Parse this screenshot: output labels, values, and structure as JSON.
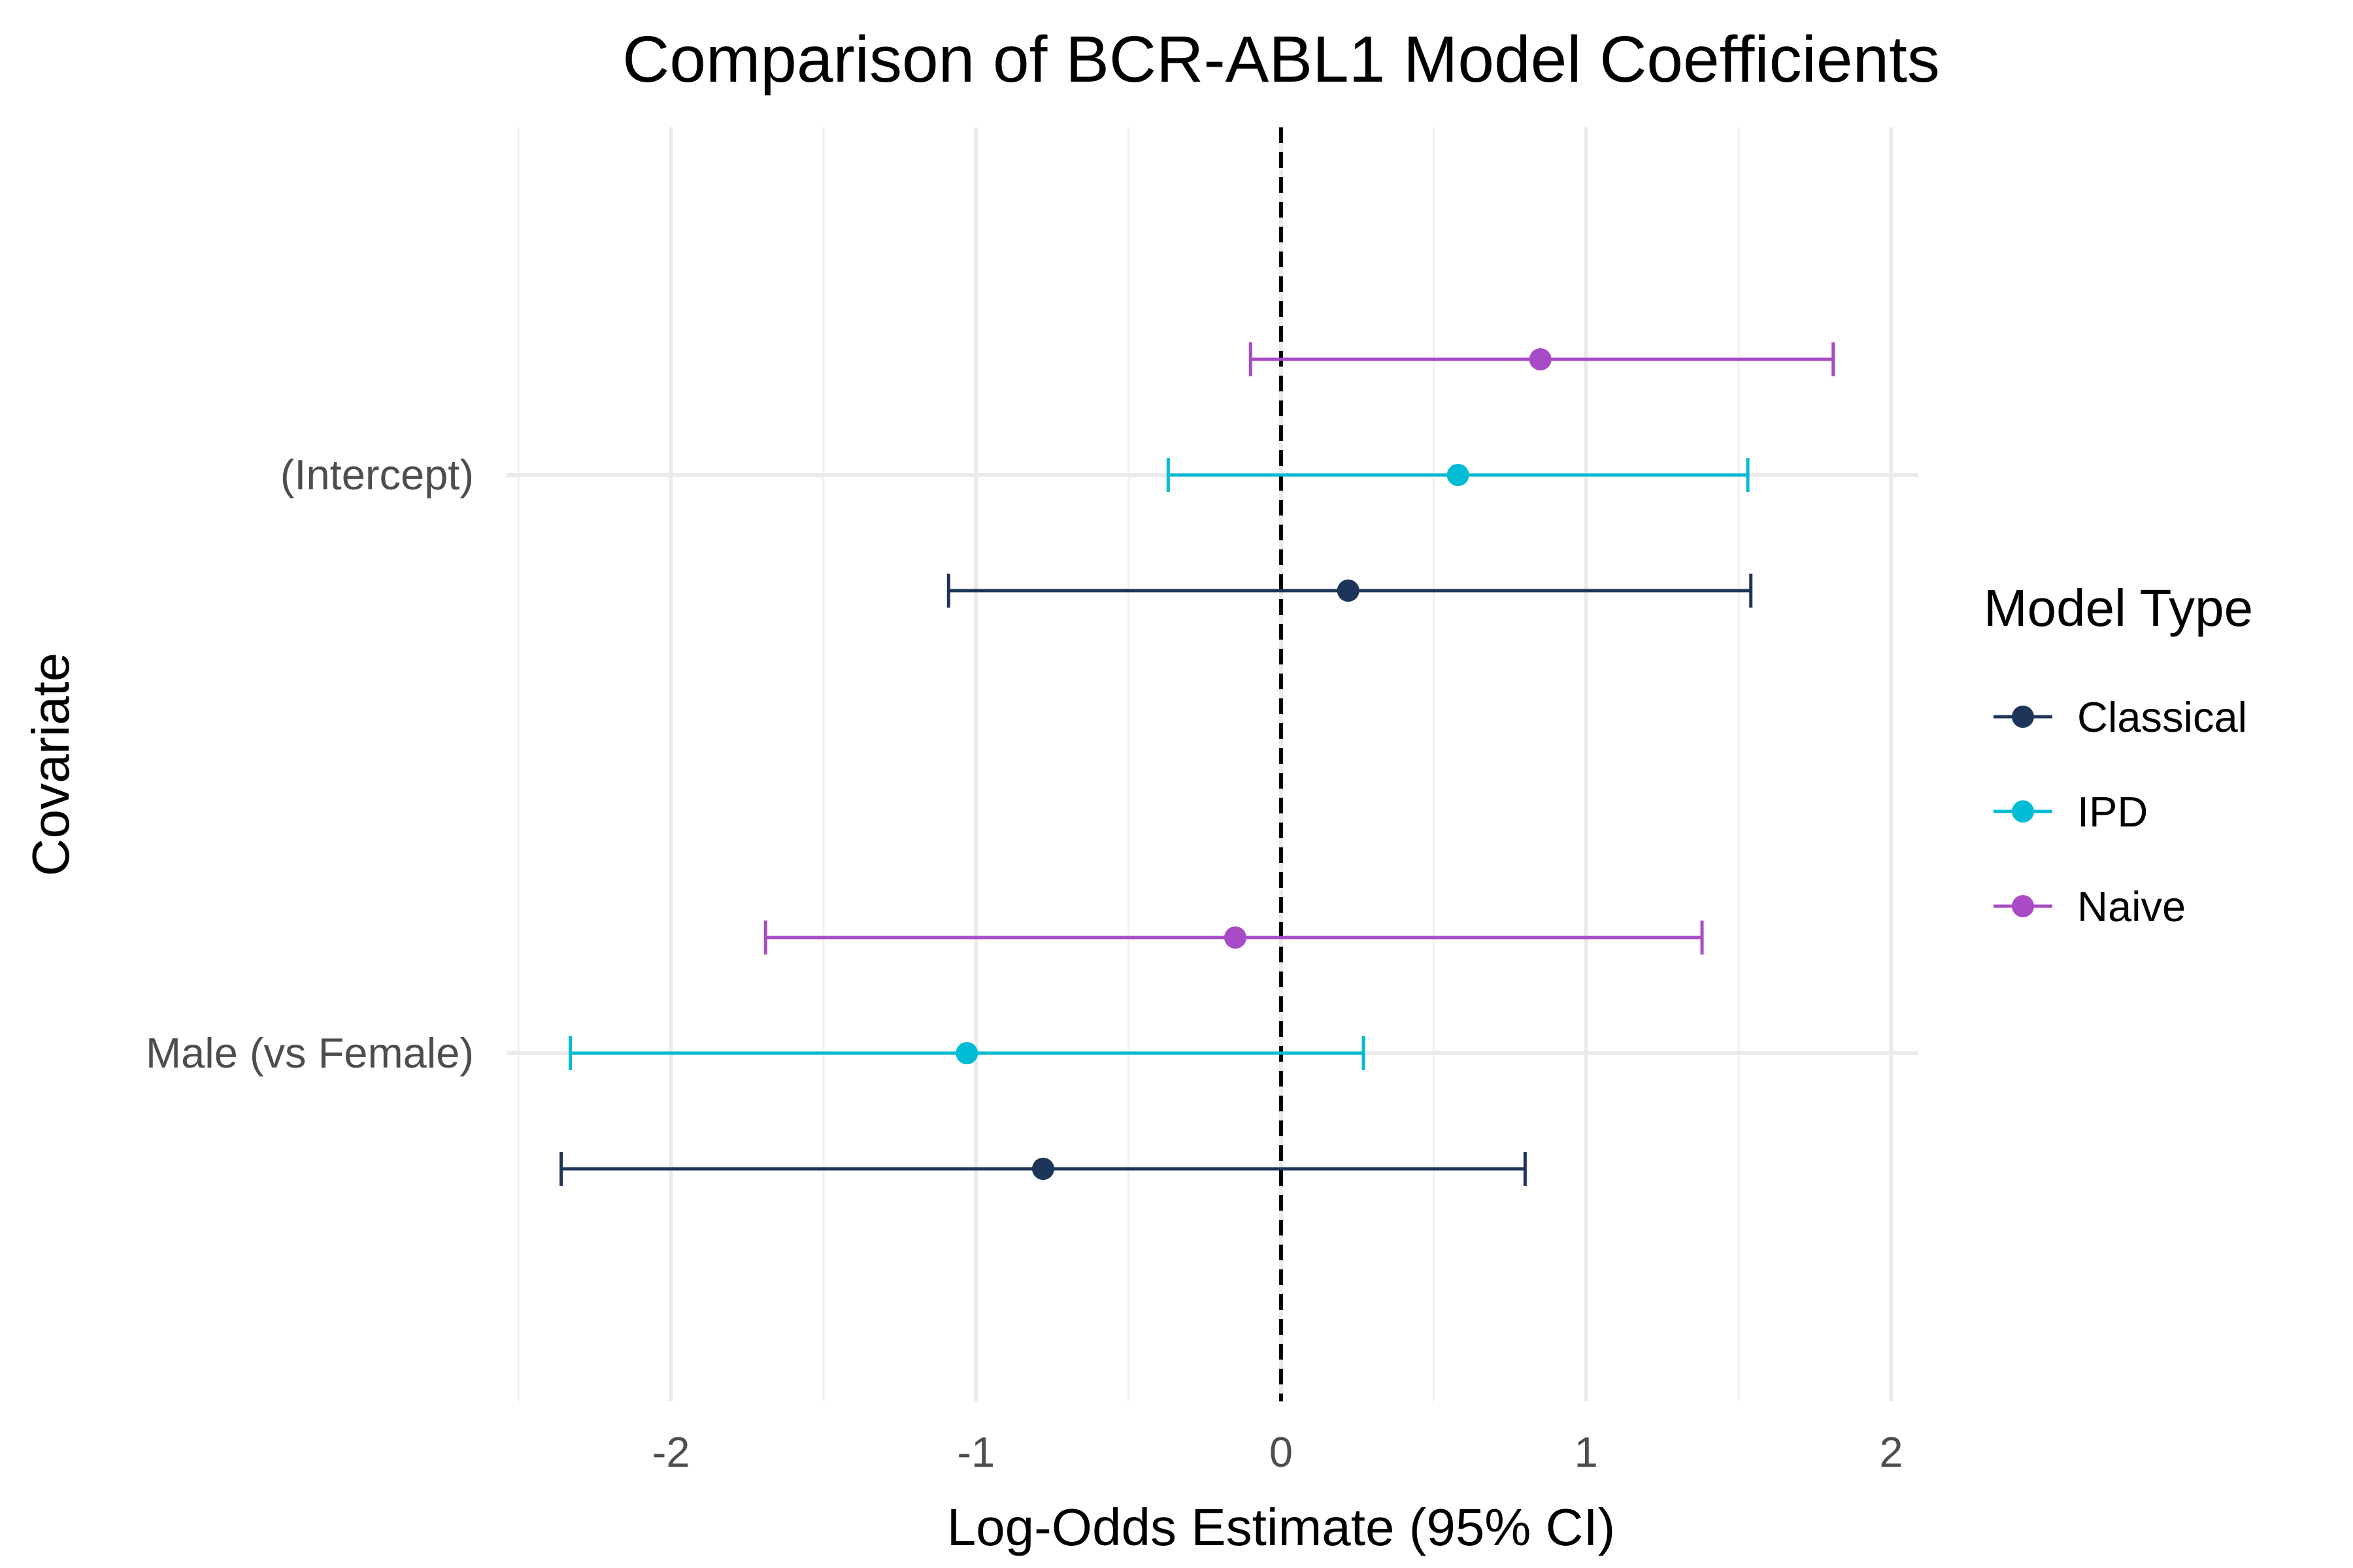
{
  "chart_data": {
    "type": "scatter",
    "subtype": "forest-plot",
    "title": "Comparison of BCR-ABL1 Model Coefficients",
    "xlabel": "Log-Odds Estimate (95% CI)",
    "ylabel": "Covariate",
    "xlim": [
      -2.5,
      2.0
    ],
    "x_ticks": [
      -2,
      -1,
      0,
      1,
      2
    ],
    "x_tick_labels": [
      "-2",
      "-1",
      "0",
      "1",
      "2"
    ],
    "categories": [
      "(Intercept)",
      "Male (vs Female)"
    ],
    "reference_line": {
      "x": 0,
      "style": "dashed",
      "color": "#000000"
    },
    "grid": true,
    "legend": {
      "title": "Model Type",
      "position": "right"
    },
    "series": [
      {
        "name": "Classical",
        "color": "#1c3558",
        "points": [
          {
            "category": "(Intercept)",
            "estimate": 0.22,
            "lower": -1.09,
            "upper": 1.54
          },
          {
            "category": "Male (vs Female)",
            "estimate": -0.78,
            "lower": -2.36,
            "upper": 0.8
          }
        ]
      },
      {
        "name": "IPD",
        "color": "#00bcd4",
        "points": [
          {
            "category": "(Intercept)",
            "estimate": 0.58,
            "lower": -0.37,
            "upper": 1.53
          },
          {
            "category": "Male (vs Female)",
            "estimate": -1.03,
            "lower": -2.33,
            "upper": 0.27
          }
        ]
      },
      {
        "name": "Naive",
        "color": "#a94bc6",
        "points": [
          {
            "category": "(Intercept)",
            "estimate": 0.85,
            "lower": -0.1,
            "upper": 1.81
          },
          {
            "category": "Male (vs Female)",
            "estimate": -0.15,
            "lower": -1.69,
            "upper": 1.38
          }
        ]
      }
    ]
  }
}
